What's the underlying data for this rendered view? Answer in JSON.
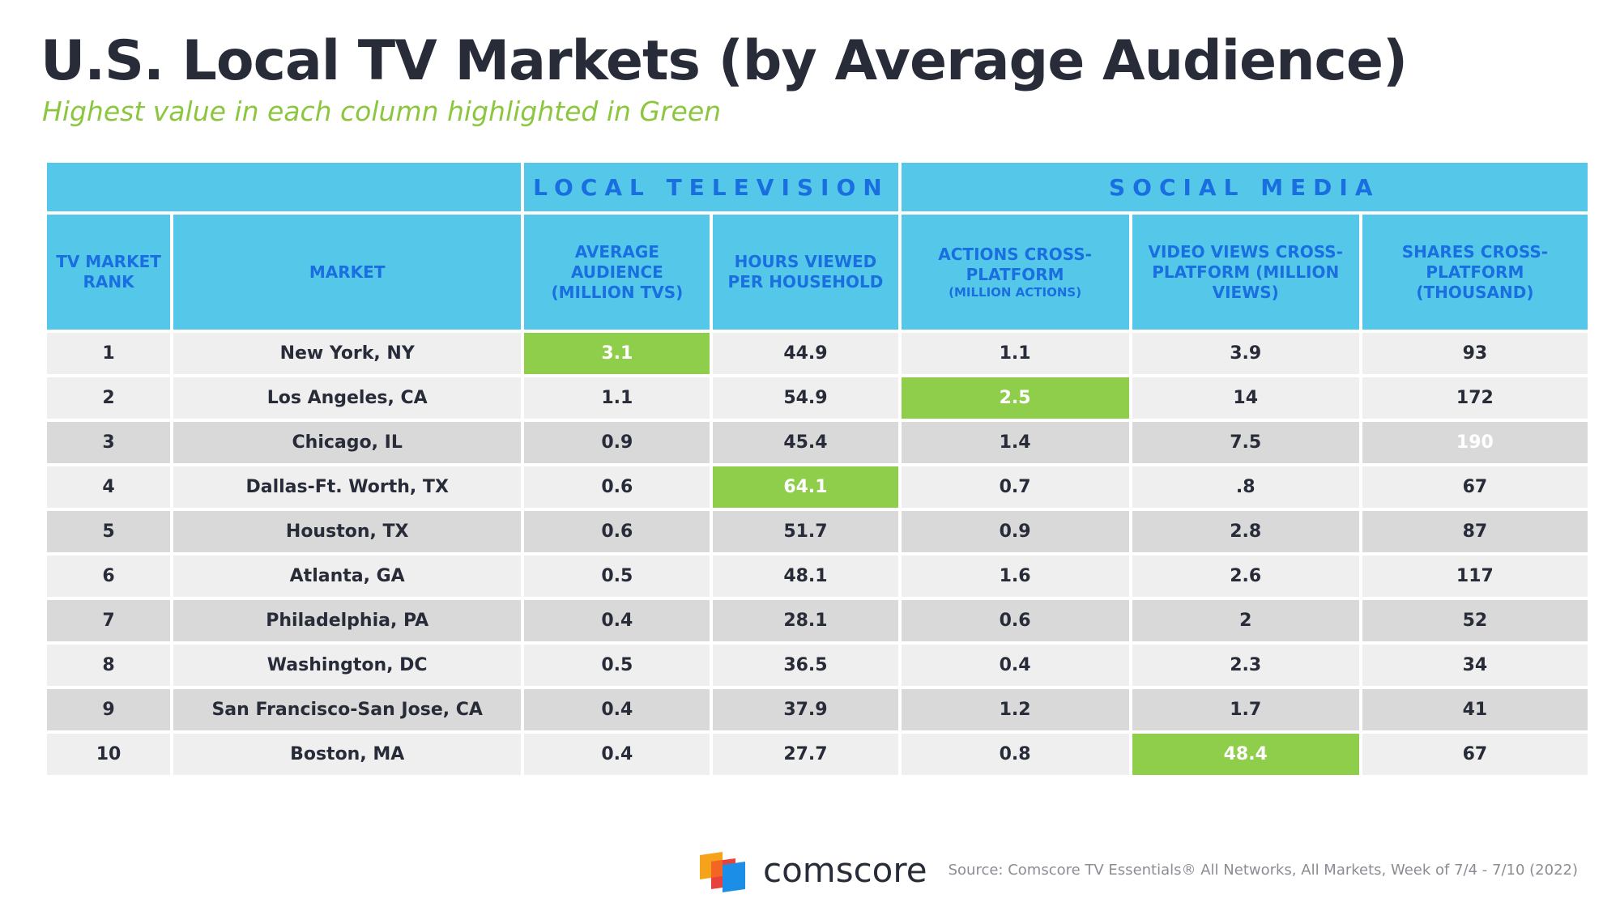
{
  "header": {
    "title": "U.S. Local TV Markets (by Average Audience)",
    "subtitle": "Highest value in each column highlighted in Green"
  },
  "table": {
    "groups": [
      "LOCAL TELEVISION",
      "SOCIAL MEDIA"
    ],
    "columns": [
      {
        "text": "TV MARKET RANK"
      },
      {
        "text": "MARKET"
      },
      {
        "text": "AVERAGE AUDIENCE (MILLION TVS)"
      },
      {
        "text": "HOURS VIEWED PER HOUSEHOLD"
      },
      {
        "text": "ACTIONS CROSS-PLATFORM",
        "note": "(MILLION ACTIONS)"
      },
      {
        "text": "VIDEO VIEWS CROSS-PLATFORM (MILLION VIEWS)"
      },
      {
        "text": "SHARES CROSS-PLATFORM (THOUSAND)"
      }
    ],
    "rows": [
      [
        "1",
        "New York, NY",
        "3.1",
        "44.9",
        "1.1",
        "3.9",
        "93"
      ],
      [
        "2",
        "Los Angeles, CA",
        "1.1",
        "54.9",
        "2.5",
        "14",
        "172"
      ],
      [
        "3",
        "Chicago, IL",
        "0.9",
        "45.4",
        "1.4",
        "7.5",
        "190"
      ],
      [
        "4",
        "Dallas-Ft. Worth, TX",
        "0.6",
        "64.1",
        "0.7",
        ".8",
        "67"
      ],
      [
        "5",
        "Houston, TX",
        "0.6",
        "51.7",
        "0.9",
        "2.8",
        "87"
      ],
      [
        "6",
        "Atlanta, GA",
        "0.5",
        "48.1",
        "1.6",
        "2.6",
        "117"
      ],
      [
        "7",
        "Philadelphia, PA",
        "0.4",
        "28.1",
        "0.6",
        "2",
        "52"
      ],
      [
        "8",
        "Washington, DC",
        "0.5",
        "36.5",
        "0.4",
        "2.3",
        "34"
      ],
      [
        "9",
        "San Francisco-San Jose, CA",
        "0.4",
        "37.9",
        "1.2",
        "1.7",
        "41"
      ],
      [
        "10",
        "Boston, MA",
        "0.4",
        "27.7",
        "0.8",
        "48.4",
        "67"
      ]
    ]
  },
  "footer": {
    "brand": "comscore",
    "source": "Source: Comscore TV Essentials® All Networks, All Markets, Week of 7/4 - 7/10 (2022)"
  }
}
